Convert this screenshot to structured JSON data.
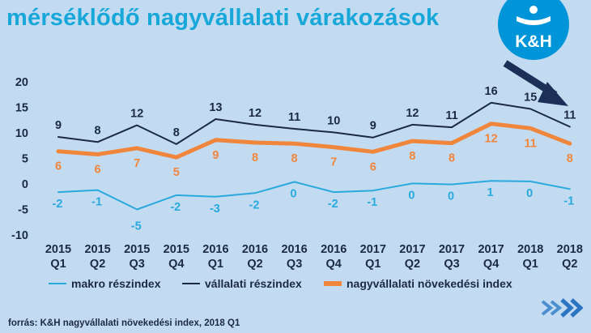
{
  "title": "mérséklődő nagyvállalati várakozások",
  "logo_text": "K&H",
  "source": "forrás: K&H nagyvállalati növekedési index, 2018 Q1",
  "colors": {
    "background": "#c3dbf1",
    "title": "#17a7d8",
    "makro": "#29a9dd",
    "vallalati": "#1b2a44",
    "index": "#f0853c",
    "arrow": "#1c2f57",
    "logo_bg": "#0094d8"
  },
  "icons": {
    "arrow": "arrow-down-right-icon",
    "chevrons": "chevron-double-right-icon"
  },
  "chart_data": {
    "type": "line",
    "categories_year": [
      "2015",
      "2015",
      "2015",
      "2015",
      "2016",
      "2016",
      "2016",
      "2016",
      "2017",
      "2017",
      "2017",
      "2017",
      "2018",
      "2018"
    ],
    "categories_quarter": [
      "Q1",
      "Q2",
      "Q3",
      "Q4",
      "Q1",
      "Q2",
      "Q3",
      "Q4",
      "Q1",
      "Q2",
      "Q3",
      "Q4",
      "Q1",
      "Q2"
    ],
    "ylim": [
      -10,
      20
    ],
    "yticks": [
      "20",
      "15",
      "10",
      "5",
      "0",
      "-5",
      "-10"
    ],
    "ytick_values": [
      20,
      15,
      10,
      5,
      0,
      -5,
      -10
    ],
    "grid": false,
    "legend_position": "bottom",
    "series": [
      {
        "key": "makro",
        "name": "makro részindex",
        "values": [
          -1.6,
          -1.2,
          -5,
          -2.2,
          -2.5,
          -1.8,
          0.4,
          -1.6,
          -1.3,
          0.1,
          -0.1,
          0.6,
          0.5,
          -1
        ],
        "labels": [
          "-2",
          "-1",
          "-5",
          "-2",
          "-3",
          "-2",
          "0",
          "-2",
          "-1",
          "0",
          "0",
          "1",
          "0",
          "-1"
        ]
      },
      {
        "key": "vallalati",
        "name": "vállalati részindex",
        "values": [
          9.2,
          8.2,
          11.5,
          7.8,
          12.7,
          11.6,
          10.8,
          10.1,
          9.1,
          11.6,
          11.1,
          15.9,
          14.7,
          11.2
        ],
        "labels": [
          "9",
          "8",
          "12",
          "8",
          "13",
          "12",
          "11",
          "10",
          "9",
          "12",
          "11",
          "16",
          "15",
          "11"
        ]
      },
      {
        "key": "index",
        "name": "nagyvállalati növekedési index",
        "values": [
          6.4,
          5.8,
          7,
          5.2,
          8.6,
          8.1,
          7.9,
          7.2,
          6.3,
          8.4,
          8,
          11.8,
          10.9,
          7.9
        ],
        "labels": [
          "6",
          "6",
          "7",
          "5",
          "9",
          "8",
          "8",
          "7",
          "6",
          "8",
          "8",
          "12",
          "11",
          "8"
        ]
      }
    ]
  }
}
